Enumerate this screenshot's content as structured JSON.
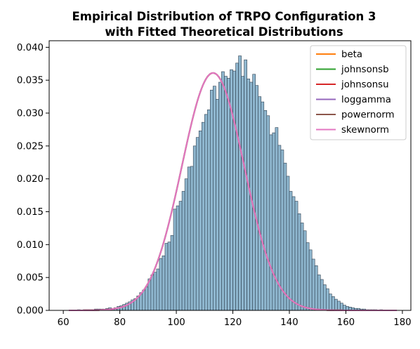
{
  "chart_data": {
    "type": "bar",
    "title": "Empirical Distribution of TRPO Configuration 3",
    "subtitle": "with Fitted Theoretical Distributions",
    "xlim": [
      55,
      183
    ],
    "ylim": [
      0,
      0.041
    ],
    "x_ticks": [
      60,
      80,
      100,
      120,
      140,
      160,
      180
    ],
    "y_ticks": [
      0.0,
      0.005,
      0.01,
      0.015,
      0.02,
      0.025,
      0.03,
      0.035,
      0.04
    ],
    "x_tick_labels": [
      "60",
      "80",
      "100",
      "120",
      "140",
      "160",
      "180"
    ],
    "y_tick_labels": [
      "0.000",
      "0.005",
      "0.010",
      "0.015",
      "0.020",
      "0.025",
      "0.030",
      "0.035",
      "0.040"
    ],
    "legend_position": "top-right",
    "histogram": {
      "bin_start": 60,
      "bin_width": 1,
      "color": "#8fb7cf",
      "edge_color": "#2e3f4f",
      "values": [
        0,
        0,
        0,
        0,
        0,
        0.0001,
        0,
        0.0001,
        0.0001,
        0.0001,
        0.0001,
        0.0002,
        0.0002,
        0.0002,
        0.0002,
        0.0003,
        0.0004,
        0.0003,
        0.0004,
        0.0006,
        0.0007,
        0.0009,
        0.0011,
        0.0013,
        0.0016,
        0.0018,
        0.0022,
        0.0027,
        0.0031,
        0.0036,
        0.0048,
        0.0054,
        0.0058,
        0.0063,
        0.0079,
        0.0083,
        0.0102,
        0.0104,
        0.0114,
        0.0154,
        0.0159,
        0.0166,
        0.0181,
        0.02,
        0.0218,
        0.0219,
        0.025,
        0.0263,
        0.0273,
        0.0286,
        0.0298,
        0.0305,
        0.0335,
        0.0341,
        0.0321,
        0.0347,
        0.0363,
        0.0356,
        0.0353,
        0.0366,
        0.0364,
        0.0376,
        0.0387,
        0.0356,
        0.0381,
        0.0352,
        0.0347,
        0.0359,
        0.0342,
        0.0325,
        0.0317,
        0.0304,
        0.0296,
        0.0267,
        0.027,
        0.0278,
        0.0251,
        0.0244,
        0.0224,
        0.0204,
        0.0181,
        0.0173,
        0.0166,
        0.0147,
        0.0133,
        0.0121,
        0.0103,
        0.0092,
        0.0078,
        0.0068,
        0.0054,
        0.0047,
        0.0039,
        0.0033,
        0.0025,
        0.0021,
        0.0017,
        0.0014,
        0.0011,
        0.0008,
        0.0006,
        0.0005,
        0.0004,
        0.0003,
        0.0003,
        0.0002,
        0.0002,
        0.0001,
        0.0001,
        0.0001,
        0.0001,
        0,
        0.0001,
        0,
        0,
        0,
        0,
        0,
        0,
        0
      ]
    },
    "fitted_curve": {
      "mu": 113,
      "sigma": 11.05,
      "x_range": [
        62,
        178
      ]
    },
    "series": [
      {
        "name": "beta",
        "color": "#ff7f0e"
      },
      {
        "name": "johnsonsb",
        "color": "#2ca02c"
      },
      {
        "name": "johnsonsu",
        "color": "#d62728"
      },
      {
        "name": "loggamma",
        "color": "#9467bd"
      },
      {
        "name": "powernorm",
        "color": "#8c564b"
      },
      {
        "name": "skewnorm",
        "color": "#e377c2"
      }
    ]
  }
}
